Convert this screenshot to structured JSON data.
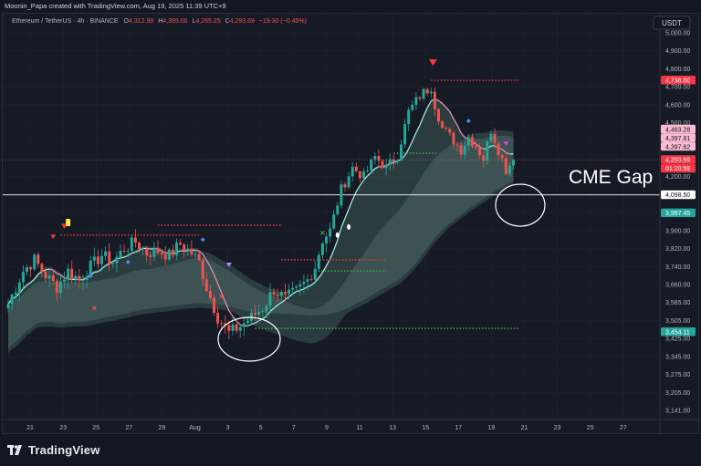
{
  "header": {
    "credit": "Moonin_Papa created with TradingView.com, Aug 19, 2025 11:39 UTC+9"
  },
  "legend": {
    "symbol": "Ethereum / TetherUS · 4h · BINANCE",
    "o_label": "O",
    "o_value": "4,312.99",
    "h_label": "H",
    "h_value": "4,355.00",
    "l_label": "L",
    "l_value": "4,265.25",
    "c_label": "C",
    "c_value": "4,293.69",
    "change": "−19.30 (−0.45%)"
  },
  "annotation_text": "CME Gap",
  "footer": {
    "brand": "TradingView"
  },
  "colors": {
    "up": "#26a69a",
    "down": "#ef5350",
    "mint": "#9ff5de",
    "pink": "#f48fb1",
    "red_dotted": "#f23645",
    "green_dotted": "#4caf50"
  },
  "chart_data": {
    "type": "candlestick",
    "currency": "USDT",
    "ylim": [
      3100,
      5050
    ],
    "y_ticks": [
      "5,000.00",
      "4,900.00",
      "4,800.00",
      "4,700.00",
      "4,600.00",
      "4,500.00",
      "4,400.00",
      "4,300.00",
      "4,200.00",
      "4,100.00",
      "4,000.00",
      "3,900.00",
      "3,820.00",
      "3,740.00",
      "3,660.00",
      "3,585.00",
      "3,505.00",
      "3,425.00",
      "3,345.00",
      "3,275.00",
      "3,205.00",
      "3,141.00"
    ],
    "x_ticks": [
      "21",
      "23",
      "25",
      "27",
      "29",
      "Aug",
      "3",
      "5",
      "7",
      "9",
      "11",
      "13",
      "15",
      "17",
      "19",
      "21",
      "23",
      "25",
      "27"
    ],
    "price_labels": [
      {
        "text": "4,736.00",
        "value": 4736,
        "color": "#f23645"
      },
      {
        "text": "4,463.28",
        "value": 4463.28,
        "color": "#f8bbd0"
      },
      {
        "text": "4,397.81",
        "value": 4397.81,
        "color": "#f8bbd0"
      },
      {
        "text": "4,397.62",
        "value": 4397.62,
        "color": "#f8bbd0"
      },
      {
        "text": "4,293.69",
        "value": 4293.69,
        "color": "#f23645"
      },
      {
        "text": "01:20:59",
        "value": 4293.69,
        "color": "#f23645"
      },
      {
        "text": "4,098.50",
        "value": 4098.5,
        "color": "#ffffff"
      },
      {
        "text": "3,997.45",
        "value": 3997.45,
        "color": "#26a69a"
      },
      {
        "text": "3,454.11",
        "value": 3454.11,
        "color": "#26a69a"
      }
    ],
    "last_price": 4293.69,
    "cme_gap_level": 4098.5,
    "anchors": [
      {
        "t": 0,
        "p": 3580
      },
      {
        "t": 4,
        "p": 3720
      },
      {
        "t": 7,
        "p": 3770
      },
      {
        "t": 10,
        "p": 3700
      },
      {
        "t": 13,
        "p": 3650
      },
      {
        "t": 16,
        "p": 3720
      },
      {
        "t": 19,
        "p": 3680
      },
      {
        "t": 22,
        "p": 3740
      },
      {
        "t": 25,
        "p": 3790
      },
      {
        "t": 28,
        "p": 3760
      },
      {
        "t": 31,
        "p": 3820
      },
      {
        "t": 34,
        "p": 3850
      },
      {
        "t": 37,
        "p": 3800
      },
      {
        "t": 40,
        "p": 3810
      },
      {
        "t": 43,
        "p": 3790
      },
      {
        "t": 46,
        "p": 3840
      },
      {
        "t": 49,
        "p": 3800
      },
      {
        "t": 51,
        "p": 3760
      },
      {
        "t": 53,
        "p": 3650
      },
      {
        "t": 56,
        "p": 3520
      },
      {
        "t": 59,
        "p": 3450
      },
      {
        "t": 62,
        "p": 3480
      },
      {
        "t": 65,
        "p": 3520
      },
      {
        "t": 68,
        "p": 3560
      },
      {
        "t": 71,
        "p": 3640
      },
      {
        "t": 74,
        "p": 3600
      },
      {
        "t": 77,
        "p": 3630
      },
      {
        "t": 80,
        "p": 3680
      },
      {
        "t": 82,
        "p": 3740
      },
      {
        "t": 84,
        "p": 3860
      },
      {
        "t": 86,
        "p": 3900
      },
      {
        "t": 89,
        "p": 4130
      },
      {
        "t": 92,
        "p": 4250
      },
      {
        "t": 95,
        "p": 4200
      },
      {
        "t": 98,
        "p": 4310
      },
      {
        "t": 101,
        "p": 4250
      },
      {
        "t": 104,
        "p": 4320
      },
      {
        "t": 107,
        "p": 4560
      },
      {
        "t": 110,
        "p": 4650
      },
      {
        "t": 113,
        "p": 4700
      },
      {
        "t": 114,
        "p": 4600
      },
      {
        "t": 116,
        "p": 4470
      },
      {
        "t": 119,
        "p": 4400
      },
      {
        "t": 121,
        "p": 4350
      },
      {
        "t": 123,
        "p": 4420
      },
      {
        "t": 125,
        "p": 4370
      },
      {
        "t": 127,
        "p": 4300
      },
      {
        "t": 129,
        "p": 4460
      },
      {
        "t": 131,
        "p": 4350
      },
      {
        "t": 133,
        "p": 4240
      },
      {
        "t": 135,
        "p": 4294
      }
    ]
  }
}
